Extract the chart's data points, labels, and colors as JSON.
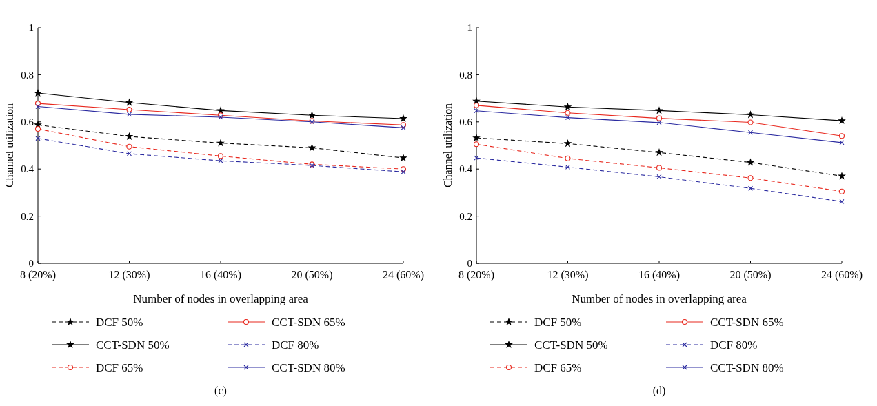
{
  "chart_data": [
    {
      "type": "line",
      "xlabel": "Number of nodes in overlapping area",
      "ylabel": "Channel utilization",
      "categories": [
        "8 (20%)",
        "12 (30%)",
        "16 (40%)",
        "20 (50%)",
        "24 (60%)"
      ],
      "ylim": [
        0,
        1
      ],
      "yticks": [
        0,
        0.2,
        0.4,
        0.6,
        0.8,
        1
      ],
      "legend": "bottom",
      "grid": false,
      "annotations": [
        "(c)"
      ],
      "series": [
        {
          "name": "DCF 50%",
          "color": "#000000",
          "marker": "star",
          "line_style": "dashed",
          "values": [
            0.587,
            0.538,
            0.51,
            0.49,
            0.447
          ]
        },
        {
          "name": "CCT-SDN 50%",
          "color": "#000000",
          "marker": "star",
          "line_style": "solid",
          "values": [
            0.722,
            0.682,
            0.648,
            0.628,
            0.614
          ]
        },
        {
          "name": "DCF 65%",
          "color": "#e8281e",
          "marker": "circle",
          "line_style": "dashed",
          "values": [
            0.57,
            0.495,
            0.455,
            0.42,
            0.4
          ]
        },
        {
          "name": "CCT-SDN 65%",
          "color": "#e8281e",
          "marker": "circle",
          "line_style": "solid",
          "values": [
            0.678,
            0.652,
            0.628,
            0.604,
            0.587
          ]
        },
        {
          "name": "DCF 80%",
          "color": "#2b2ba0",
          "marker": "cross",
          "line_style": "dashed",
          "values": [
            0.53,
            0.465,
            0.435,
            0.415,
            0.388
          ]
        },
        {
          "name": "CCT-SDN 80%",
          "color": "#2b2ba0",
          "marker": "cross",
          "line_style": "solid",
          "values": [
            0.665,
            0.632,
            0.62,
            0.6,
            0.575
          ]
        }
      ]
    },
    {
      "type": "line",
      "xlabel": "Number of nodes in overlapping area",
      "ylabel": "Channel utilization",
      "categories": [
        "8 (20%)",
        "12 (30%)",
        "16 (40%)",
        "20 (50%)",
        "24 (60%)"
      ],
      "ylim": [
        0,
        1
      ],
      "yticks": [
        0,
        0.2,
        0.4,
        0.6,
        0.8,
        1
      ],
      "legend": "bottom",
      "grid": false,
      "annotations": [
        "(d)"
      ],
      "series": [
        {
          "name": "DCF 50%",
          "color": "#000000",
          "marker": "star",
          "line_style": "dashed",
          "values": [
            0.532,
            0.508,
            0.47,
            0.428,
            0.37
          ]
        },
        {
          "name": "CCT-SDN 50%",
          "color": "#000000",
          "marker": "star",
          "line_style": "solid",
          "values": [
            0.688,
            0.663,
            0.648,
            0.63,
            0.605
          ]
        },
        {
          "name": "DCF 65%",
          "color": "#e8281e",
          "marker": "circle",
          "line_style": "dashed",
          "values": [
            0.505,
            0.445,
            0.405,
            0.362,
            0.305
          ]
        },
        {
          "name": "CCT-SDN 65%",
          "color": "#e8281e",
          "marker": "circle",
          "line_style": "solid",
          "values": [
            0.67,
            0.638,
            0.615,
            0.598,
            0.54
          ]
        },
        {
          "name": "DCF 80%",
          "color": "#2b2ba0",
          "marker": "cross",
          "line_style": "dashed",
          "values": [
            0.447,
            0.408,
            0.367,
            0.318,
            0.262
          ]
        },
        {
          "name": "CCT-SDN 80%",
          "color": "#2b2ba0",
          "marker": "cross",
          "line_style": "solid",
          "values": [
            0.647,
            0.618,
            0.597,
            0.555,
            0.512
          ]
        }
      ]
    }
  ]
}
